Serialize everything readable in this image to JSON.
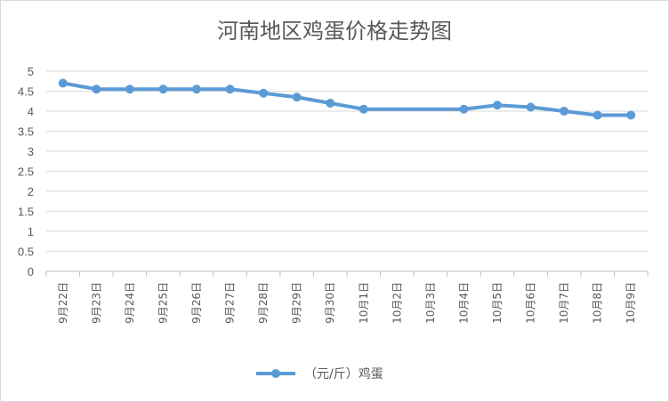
{
  "chart_data": {
    "type": "line",
    "title": "河南地区鸡蛋价格走势图",
    "categories": [
      "9月22日",
      "9月23日",
      "9月24日",
      "9月25日",
      "9月26日",
      "9月27日",
      "9月28日",
      "9月29日",
      "9月30日",
      "10月1日",
      "10月2日",
      "10月3日",
      "10月4日",
      "10月5日",
      "10月6日",
      "10月7日",
      "10月8日",
      "10月9日"
    ],
    "series": [
      {
        "name": "（元/斤）鸡蛋",
        "values": [
          4.7,
          4.55,
          4.55,
          4.55,
          4.55,
          4.55,
          4.45,
          4.35,
          4.2,
          4.05,
          4.05,
          4.05,
          4.05,
          4.15,
          4.1,
          4.0,
          3.9,
          3.9
        ],
        "markers": [
          true,
          true,
          true,
          true,
          true,
          true,
          true,
          true,
          true,
          true,
          false,
          false,
          true,
          true,
          true,
          true,
          true,
          true
        ]
      }
    ],
    "yticks": [
      "0",
      "0.5",
      "1",
      "1.5",
      "2",
      "2.5",
      "3",
      "3.5",
      "4",
      "4.5",
      "5"
    ],
    "ylim": [
      0,
      5
    ],
    "grid": true,
    "legend": "bottom",
    "colors": {
      "line": "#5b9bd5",
      "grid": "#d9d9d9",
      "axis": "#bfbfbf",
      "text": "#595959"
    }
  }
}
